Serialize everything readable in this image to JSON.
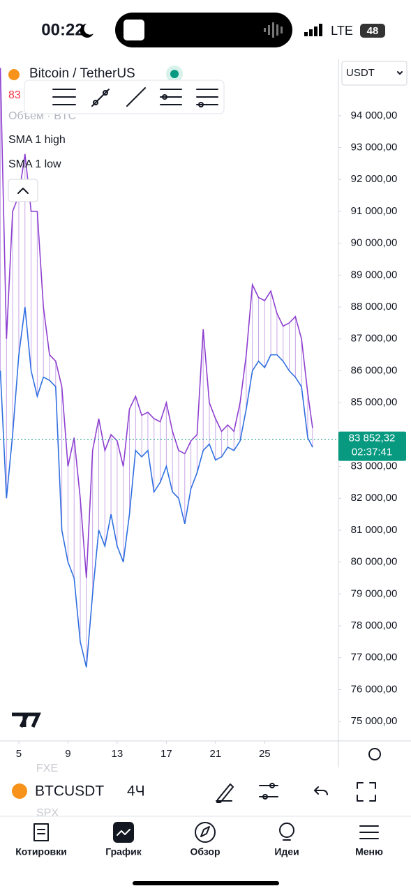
{
  "status_bar": {
    "time": "00:22",
    "network": "LTE",
    "battery": "48"
  },
  "header": {
    "symbol_title": "Bitcoin / TetherUS",
    "currency": "USDT",
    "price_partial": "83",
    "volume_label": "Объем · BTC"
  },
  "chart_data": {
    "type": "line",
    "x": [
      3.5,
      4,
      4.5,
      5,
      5.5,
      6,
      6.5,
      7,
      7.5,
      8,
      8.5,
      9,
      9.5,
      10,
      10.5,
      11,
      11.5,
      12,
      12.5,
      13,
      13.5,
      14,
      14.5,
      15,
      15.5,
      16,
      16.5,
      17,
      17.5,
      18,
      18.5,
      19,
      19.5,
      20,
      20.5,
      21,
      21.5,
      22,
      22.5,
      23,
      23.5,
      24,
      24.5,
      25,
      25.5,
      26,
      26.5,
      27,
      27.5,
      28,
      28.5,
      28.9
    ],
    "series": [
      {
        "name": "SMA 1 high",
        "color": "#8e3fd0",
        "values": [
          95500,
          87000,
          91000,
          91500,
          92800,
          91000,
          91000,
          88000,
          86500,
          86300,
          85500,
          83000,
          83900,
          82000,
          79500,
          83500,
          84500,
          83500,
          84000,
          83800,
          83000,
          84800,
          85200,
          84600,
          84700,
          84500,
          84400,
          85000,
          84100,
          83500,
          83400,
          83800,
          84000,
          87300,
          85000,
          84500,
          84100,
          84300,
          84100,
          85000,
          86500,
          88700,
          88300,
          88200,
          88500,
          87800,
          87400,
          87500,
          87700,
          87000,
          85300,
          84200
        ]
      },
      {
        "name": "SMA 1 low",
        "color": "#2f6fe0",
        "values": [
          86000,
          82000,
          84000,
          86500,
          88000,
          86000,
          85200,
          85800,
          85700,
          85500,
          81000,
          80000,
          79500,
          77500,
          76700,
          79000,
          81000,
          80500,
          81500,
          80500,
          80000,
          81500,
          83500,
          83300,
          83500,
          82200,
          82500,
          83000,
          82200,
          82000,
          81200,
          82300,
          82800,
          83500,
          83700,
          83200,
          83300,
          83600,
          83500,
          83800,
          84800,
          86000,
          86300,
          86100,
          86500,
          86500,
          86300,
          86000,
          85800,
          85500,
          83900,
          83600
        ]
      }
    ],
    "xlim": [
      3.47,
      31.0
    ],
    "xticks": [
      5,
      9,
      13,
      17,
      21,
      25
    ],
    "ylim": [
      74390,
      95770
    ],
    "yticks": [
      {
        "value": 75000,
        "label": "75 000,00"
      },
      {
        "value": 76000,
        "label": "76 000,00"
      },
      {
        "value": 77000,
        "label": "77 000,00"
      },
      {
        "value": 78000,
        "label": "78 000,00"
      },
      {
        "value": 79000,
        "label": "79 000,00"
      },
      {
        "value": 80000,
        "label": "80 000,00"
      },
      {
        "value": 81000,
        "label": "81 000,00"
      },
      {
        "value": 82000,
        "label": "82 000,00"
      },
      {
        "value": 83000,
        "label": "83 000,00"
      },
      {
        "value": 85000,
        "label": "85 000,00"
      },
      {
        "value": 86000,
        "label": "86 000,00"
      },
      {
        "value": 87000,
        "label": "87 000,00"
      },
      {
        "value": 88000,
        "label": "88 000,00"
      },
      {
        "value": 89000,
        "label": "89 000,00"
      },
      {
        "value": 90000,
        "label": "90 000,00"
      },
      {
        "value": 91000,
        "label": "91 000,00"
      },
      {
        "value": 92000,
        "label": "92 000,00"
      },
      {
        "value": 93000,
        "label": "93 000,00"
      },
      {
        "value": 94000,
        "label": "94 000,00"
      }
    ],
    "last_price": {
      "value": 83852.32,
      "label": "83 852,32",
      "color": "#089981"
    },
    "countdown": "02:37:41"
  },
  "toolbar": {
    "symbol": "BTCUSDT",
    "interval": "4Ч",
    "ghost_above": "FXE",
    "ghost_below": "SPX"
  },
  "bottom_nav": [
    "Котировки",
    "График",
    "Обзор",
    "Идеи",
    "Меню"
  ]
}
